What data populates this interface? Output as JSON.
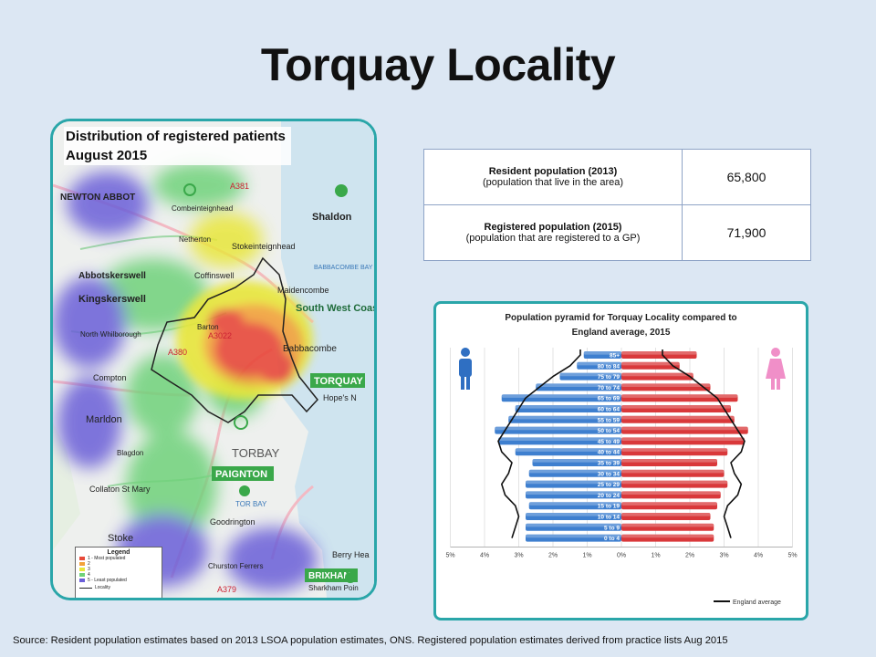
{
  "title": "Torquay Locality",
  "map": {
    "title_line1": "Distribution of registered patients",
    "title_line2": "August 2015",
    "place_labels": [
      "NEWTON ABBOT",
      "Combeinteignhead",
      "Netherton",
      "Shaldon",
      "Stokeinteignhead",
      "Abbotskerswell",
      "Coffinswell",
      "BABBACOMBE BAY",
      "Kingskerswell",
      "Maidencombe",
      "South West Coast Path",
      "North Whilborough",
      "Barton",
      "Babbacombe",
      "TORQUAY",
      "Hope's N",
      "Compton",
      "Marldon",
      "TORBAY",
      "PAIGNTON",
      "Blagdon",
      "Collaton St Mary",
      "TOR BAY",
      "Goodrington",
      "Stoke",
      "Berry Hea",
      "BRIXHAM",
      "Churston Ferrers",
      "Sharkham Poin"
    ],
    "roads": [
      "A381",
      "A380",
      "A3022",
      "A379"
    ],
    "legend": {
      "title": "Legend",
      "items": [
        "1 - Most populated",
        "2",
        "3",
        "4",
        "5 - Least populated"
      ],
      "colors": [
        "#e84a3a",
        "#f3a23a",
        "#e8e63a",
        "#6fd27a",
        "#6a5fd8"
      ],
      "locality_label": "Locality"
    }
  },
  "population_table": {
    "rows": [
      {
        "label": "Resident population (2013)",
        "sublabel": "(population that live in the area)",
        "value": "65,800"
      },
      {
        "label": "Registered population (2015)",
        "sublabel": "(population that are registered to a GP)",
        "value": "71,900"
      }
    ]
  },
  "pyramid": {
    "title_line1": "Population pyramid for Torquay Locality compared to",
    "title_line2": "England average, 2015",
    "legend_label": "England average",
    "male_color": "#3e7fcf",
    "female_color": "#d9383a"
  },
  "chart_data": {
    "type": "bar",
    "orientation": "horizontal",
    "categories": [
      "85+",
      "80 to 84",
      "75 to 79",
      "70 to 74",
      "65 to 69",
      "60 to 64",
      "55 to 59",
      "50 to 54",
      "45 to 49",
      "40 to 44",
      "35 to 39",
      "30 to 34",
      "25 to 29",
      "20 to 24",
      "15 to 19",
      "10 to 14",
      "5 to 9",
      "0 to 4"
    ],
    "series": [
      {
        "values": [
          1.1,
          1.3,
          1.8,
          2.5,
          3.5,
          3.1,
          3.3,
          3.7,
          3.6,
          3.1,
          2.6,
          2.7,
          2.8,
          2.8,
          2.7,
          2.8,
          2.8,
          2.8
        ]
      },
      {
        "values": [
          2.2,
          1.7,
          2.1,
          2.6,
          3.4,
          3.2,
          3.3,
          3.7,
          3.6,
          3.1,
          2.8,
          3.0,
          3.1,
          2.9,
          2.8,
          2.6,
          2.7,
          2.7
        ]
      },
      {
        "name": "England average",
        "values": [
          1.2,
          1.5,
          2.0,
          2.4,
          2.8,
          3.0,
          3.2,
          3.4,
          3.6,
          3.5,
          3.2,
          3.3,
          3.5,
          3.4,
          3.1,
          3.0,
          3.1,
          3.2
        ]
      }
    ],
    "xticks": [
      "5%",
      "4%",
      "3%",
      "2%",
      "1%",
      "0%",
      "1%",
      "2%",
      "3%",
      "4%",
      "5%"
    ],
    "xlim": [
      -5,
      5
    ],
    "legend_position": "bottom-right"
  },
  "source": "Source: Resident population estimates based on 2013 LSOA population estimates, ONS. Registered population estimates derived from practice lists Aug 2015"
}
